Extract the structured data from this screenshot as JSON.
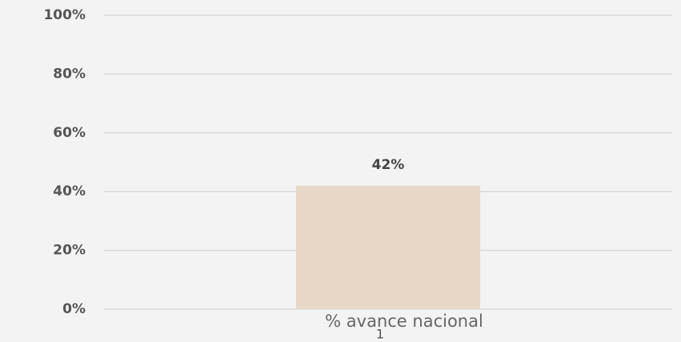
{
  "chart_data": {
    "type": "bar",
    "x_label": "% avance nacional",
    "categories": [
      "1"
    ],
    "values": [
      42
    ],
    "value_labels": [
      "42%"
    ],
    "color": "#e6d7c7",
    "ylim": [
      0,
      100
    ],
    "yticks": [
      {
        "value": 0,
        "label": "0%"
      },
      {
        "value": 20,
        "label": "20%"
      },
      {
        "value": 40,
        "label": "40%"
      },
      {
        "value": 60,
        "label": "60%"
      },
      {
        "value": 80,
        "label": "80%"
      },
      {
        "value": 100,
        "label": "100%"
      }
    ],
    "grid": true
  }
}
